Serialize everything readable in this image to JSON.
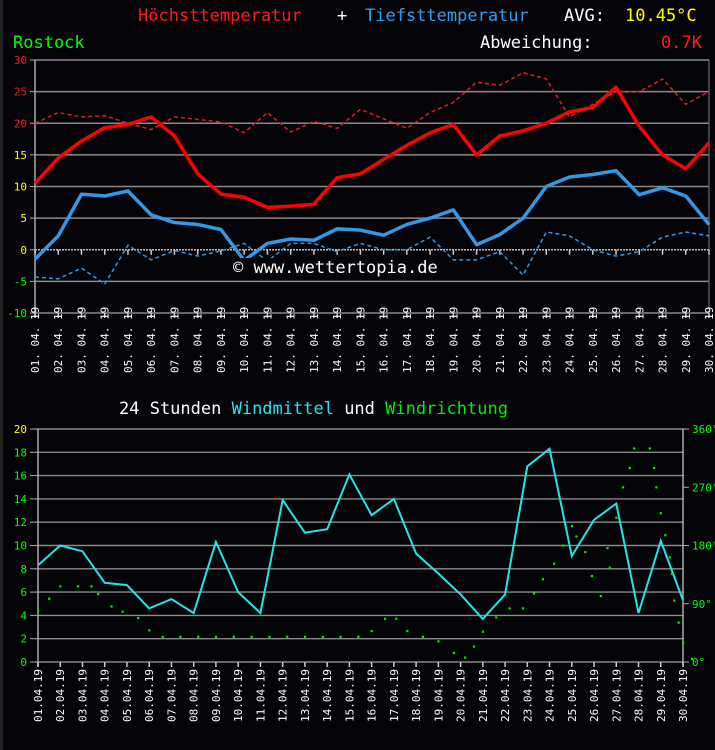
{
  "header": {
    "title_max": "Höchsttemperatur",
    "title_plus": "+",
    "title_min": "Tiefsttemperatur",
    "avg_label": "AVG:",
    "avg_value": "10.45°C",
    "station": "Rostock",
    "deviation_label": "Abweichung:",
    "deviation_value": "0.7K"
  },
  "colors": {
    "max": "#ff0000",
    "max_normal": "#e02020",
    "min": "#3399e6",
    "min_normal": "#3399e6",
    "avg": "#ffff00",
    "station": "#00ff00",
    "deviation": "#ff0000",
    "wind_mean": "#22e6e6",
    "wind_dir": "#00ee00",
    "grid": "#9a9a9a",
    "text": "#ffffff"
  },
  "watermark": "© www.wettertopia.de",
  "wind_title": {
    "part1": "24 Stunden ",
    "part2": "Windmittel",
    "part3": " und ",
    "part4": "Windrichtung"
  },
  "chart_data": [
    {
      "type": "line",
      "title": "Höchsttemperatur + Tiefsttemperatur",
      "xlabel": "",
      "ylabel": "°C",
      "ylim": [
        -10,
        30
      ],
      "yticks": [
        30,
        25,
        20,
        15,
        10,
        5,
        0,
        -5,
        -10
      ],
      "grid": true,
      "categories": [
        "01.04.19",
        "02.04.19",
        "03.04.19",
        "04.04.19",
        "05.04.19",
        "06.04.19",
        "07.04.19",
        "08.04.19",
        "09.04.19",
        "10.04.19",
        "11.04.19",
        "12.04.19",
        "13.04.19",
        "14.04.19",
        "15.04.19",
        "16.04.19",
        "17.04.19",
        "18.04.19",
        "19.04.19",
        "20.04.19",
        "21.04.19",
        "22.04.19",
        "23.04.19",
        "24.04.19",
        "25.04.19",
        "26.04.19",
        "27.04.19",
        "28.04.19",
        "29.04.19",
        "30.04.19"
      ],
      "series": [
        {
          "name": "Höchsttemperatur",
          "style": "solid",
          "color": "#ff0000",
          "values": [
            10.5,
            14.5,
            17.2,
            19.3,
            19.8,
            21,
            18,
            12,
            8.8,
            8.3,
            6.7,
            6.9,
            7.2,
            11.4,
            12,
            14.3,
            16.5,
            18.5,
            19.8,
            15,
            18,
            18.8,
            20,
            21.8,
            22.5,
            25.7,
            19.5,
            15,
            12.8,
            16.9
          ]
        },
        {
          "name": "Höchsttemperatur Normal",
          "style": "dashed",
          "color": "#e02020",
          "values": [
            20,
            21.7,
            21,
            21.2,
            20,
            19,
            21,
            20.6,
            20.2,
            18.5,
            21.7,
            18.6,
            20.3,
            19.2,
            22.2,
            20.7,
            19.2,
            21.7,
            23.3,
            26.5,
            26,
            28,
            27,
            21,
            23,
            25,
            25,
            27,
            23,
            25
          ]
        },
        {
          "name": "Tiefsttemperatur",
          "style": "solid",
          "color": "#3399e6",
          "values": [
            -1.5,
            2.2,
            8.8,
            8.5,
            9.3,
            5.5,
            4.3,
            4,
            3.2,
            -1.7,
            1,
            1.7,
            1.5,
            3.3,
            3.1,
            2.3,
            4,
            5,
            6.3,
            0.8,
            2.4,
            5,
            10,
            11.5,
            11.9,
            12.5,
            8.7,
            9.8,
            8.5,
            4
          ]
        },
        {
          "name": "Tiefsttemperatur Normal",
          "style": "dashed",
          "color": "#3399e6",
          "values": [
            -4.3,
            -4.6,
            -2.9,
            -5.4,
            0.7,
            -1.6,
            -0.1,
            -1,
            -0.2,
            1,
            -1.8,
            1,
            1,
            -0.3,
            1,
            0,
            0,
            2,
            -1.6,
            -1.6,
            -0.3,
            -4,
            2.8,
            2.2,
            0,
            -1,
            -0.3,
            2,
            2.8,
            2.2
          ]
        }
      ]
    },
    {
      "type": "line",
      "title": "24 Stunden Windmittel und Windrichtung",
      "xlabel": "",
      "ylabel": "",
      "ylim": [
        0,
        20
      ],
      "yticks": [
        20,
        18,
        16,
        14,
        12,
        10,
        8,
        6,
        4,
        2,
        0
      ],
      "y2lim": [
        0,
        360
      ],
      "y2ticks": [
        "360°",
        "270°",
        "180°",
        "90°",
        "0°"
      ],
      "grid": true,
      "categories": [
        "01.04.19",
        "02.04.19",
        "03.04.19",
        "04.04.19",
        "05.04.19",
        "06.04.19",
        "07.04.19",
        "08.04.19",
        "09.04.19",
        "10.04.19",
        "11.04.19",
        "12.04.19",
        "13.04.19",
        "14.04.19",
        "15.04.19",
        "16.04.19",
        "17.04.19",
        "18.04.19",
        "19.04.19",
        "20.04.19",
        "21.04.19",
        "22.04.19",
        "23.04.19",
        "24.04.19",
        "25.04.19",
        "26.04.19",
        "27.04.19",
        "28.04.19",
        "29.04.19",
        "30.04.19"
      ],
      "series": [
        {
          "name": "Windmittel",
          "style": "solid",
          "color": "#22e6e6",
          "values": [
            8.3,
            10,
            9.5,
            6.8,
            6.6,
            4.6,
            5.4,
            4.2,
            10.3,
            6,
            4.2,
            13.9,
            11.1,
            11.4,
            16.1,
            12.6,
            14,
            9.3,
            7.6,
            5.8,
            3.7,
            5.8,
            16.8,
            18.3,
            9.1,
            12.2,
            13.6,
            4.2,
            10.4,
            5.3
          ]
        },
        {
          "name": "Windrichtung",
          "style": "dots",
          "color": "#00ee00",
          "axis": "y2",
          "points": [
            [
              0.0,
              79
            ],
            [
              0.5,
              98
            ],
            [
              1.0,
              117
            ],
            [
              1.8,
              117
            ],
            [
              2.4,
              117
            ],
            [
              2.7,
              105
            ],
            [
              3.3,
              86
            ],
            [
              3.8,
              78
            ],
            [
              4.5,
              68
            ],
            [
              5.0,
              49
            ],
            [
              5.6,
              39
            ],
            [
              6.4,
              39
            ],
            [
              7.2,
              39
            ],
            [
              8.0,
              39
            ],
            [
              8.8,
              39
            ],
            [
              9.6,
              39
            ],
            [
              10.4,
              39
            ],
            [
              11.2,
              39
            ],
            [
              12.0,
              39
            ],
            [
              12.8,
              39
            ],
            [
              13.6,
              39
            ],
            [
              14.4,
              39
            ],
            [
              15.0,
              48
            ],
            [
              15.6,
              67
            ],
            [
              16.1,
              67
            ],
            [
              16.6,
              48
            ],
            [
              17.3,
              39
            ],
            [
              18.0,
              32
            ],
            [
              18.7,
              14
            ],
            [
              19.2,
              7
            ],
            [
              19.6,
              24
            ],
            [
              20.0,
              47
            ],
            [
              20.6,
              69
            ],
            [
              21.2,
              83
            ],
            [
              21.8,
              83
            ],
            [
              22.3,
              106
            ],
            [
              22.7,
              128
            ],
            [
              23.2,
              152
            ],
            [
              23.6,
              180
            ],
            [
              24.0,
              210
            ],
            [
              24.2,
              194
            ],
            [
              24.6,
              170
            ],
            [
              24.9,
              133
            ],
            [
              25.3,
              102
            ],
            [
              25.6,
              176
            ],
            [
              25.7,
              146
            ],
            [
              26.0,
              223
            ],
            [
              26.3,
              270
            ],
            [
              26.6,
              300
            ],
            [
              26.8,
              330
            ],
            [
              27.5,
              330
            ],
            [
              27.7,
              300
            ],
            [
              27.8,
              270
            ],
            [
              28.0,
              230
            ],
            [
              28.2,
              196
            ],
            [
              28.4,
              162
            ],
            [
              28.5,
              136
            ],
            [
              28.6,
              95
            ],
            [
              28.8,
              61
            ],
            [
              29.0,
              30
            ],
            [
              29.4,
              5
            ]
          ]
        }
      ]
    }
  ]
}
